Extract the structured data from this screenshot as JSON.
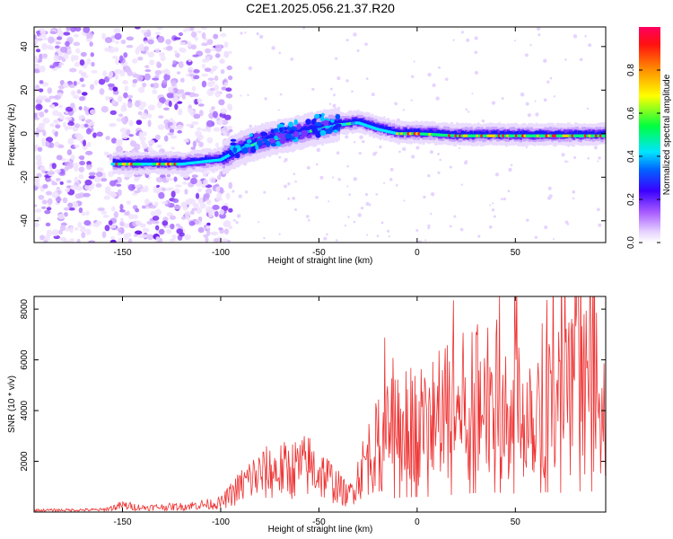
{
  "title": "C2E1.2025.056.21.37.R20",
  "chart_data": [
    {
      "type": "heatmap",
      "xlabel": "Height of straight line (km)",
      "ylabel": "Frequency (Hz)",
      "xlim": [
        -195,
        96
      ],
      "ylim": [
        -50,
        49
      ],
      "xticks": [
        -150,
        -100,
        -50,
        0,
        50
      ],
      "yticks": [
        -40,
        -20,
        0,
        20,
        40
      ],
      "colorbar": {
        "label": "Normalized spectral amplitude",
        "range": [
          0,
          1
        ],
        "ticks": [
          0.0,
          0.2,
          0.4,
          0.6,
          0.8
        ],
        "colors": [
          "#ffffff",
          "#e0c8ff",
          "#8a2be2",
          "#0000ff",
          "#00ffff",
          "#00ff00",
          "#ffff00",
          "#ff8000",
          "#ff0000",
          "#ff0080"
        ]
      },
      "ridge": [
        {
          "x": -155,
          "y": -14
        },
        {
          "x": -140,
          "y": -14
        },
        {
          "x": -130,
          "y": -14
        },
        {
          "x": -120,
          "y": -14
        },
        {
          "x": -110,
          "y": -13
        },
        {
          "x": -100,
          "y": -12
        },
        {
          "x": -90,
          "y": -7
        },
        {
          "x": -80,
          "y": -4
        },
        {
          "x": -70,
          "y": -2
        },
        {
          "x": -60,
          "y": 0
        },
        {
          "x": -50,
          "y": 2
        },
        {
          "x": -40,
          "y": 4
        },
        {
          "x": -30,
          "y": 5
        },
        {
          "x": -20,
          "y": 2
        },
        {
          "x": -10,
          "y": 0
        },
        {
          "x": 0,
          "y": 0
        },
        {
          "x": 20,
          "y": -1
        },
        {
          "x": 40,
          "y": -1
        },
        {
          "x": 60,
          "y": -1
        },
        {
          "x": 80,
          "y": -1
        },
        {
          "x": 96,
          "y": -1
        }
      ]
    },
    {
      "type": "line",
      "xlabel": "Height of straight line (km)",
      "ylabel": "SNR (10 * v/v)",
      "xlim": [
        -195,
        96
      ],
      "ylim": [
        0,
        8500
      ],
      "xticks": [
        -150,
        -100,
        -50,
        0,
        50
      ],
      "yticks": [
        2000,
        4000,
        6000,
        8000
      ],
      "color": "#ee3333",
      "envelope": [
        {
          "x": -195,
          "y": 80
        },
        {
          "x": -160,
          "y": 100
        },
        {
          "x": -150,
          "y": 300
        },
        {
          "x": -140,
          "y": 200
        },
        {
          "x": -120,
          "y": 250
        },
        {
          "x": -100,
          "y": 400
        },
        {
          "x": -85,
          "y": 1500
        },
        {
          "x": -75,
          "y": 1800
        },
        {
          "x": -65,
          "y": 1900
        },
        {
          "x": -55,
          "y": 2100
        },
        {
          "x": -45,
          "y": 1500
        },
        {
          "x": -35,
          "y": 700
        },
        {
          "x": -25,
          "y": 2500
        },
        {
          "x": -15,
          "y": 3500
        },
        {
          "x": -5,
          "y": 3900
        },
        {
          "x": 5,
          "y": 4000
        },
        {
          "x": 15,
          "y": 4400
        },
        {
          "x": 25,
          "y": 4800
        },
        {
          "x": 35,
          "y": 5200
        },
        {
          "x": 45,
          "y": 5000
        },
        {
          "x": 55,
          "y": 4600
        },
        {
          "x": 65,
          "y": 5200
        },
        {
          "x": 75,
          "y": 5000
        },
        {
          "x": 85,
          "y": 5600
        },
        {
          "x": 96,
          "y": 5000
        }
      ]
    }
  ]
}
